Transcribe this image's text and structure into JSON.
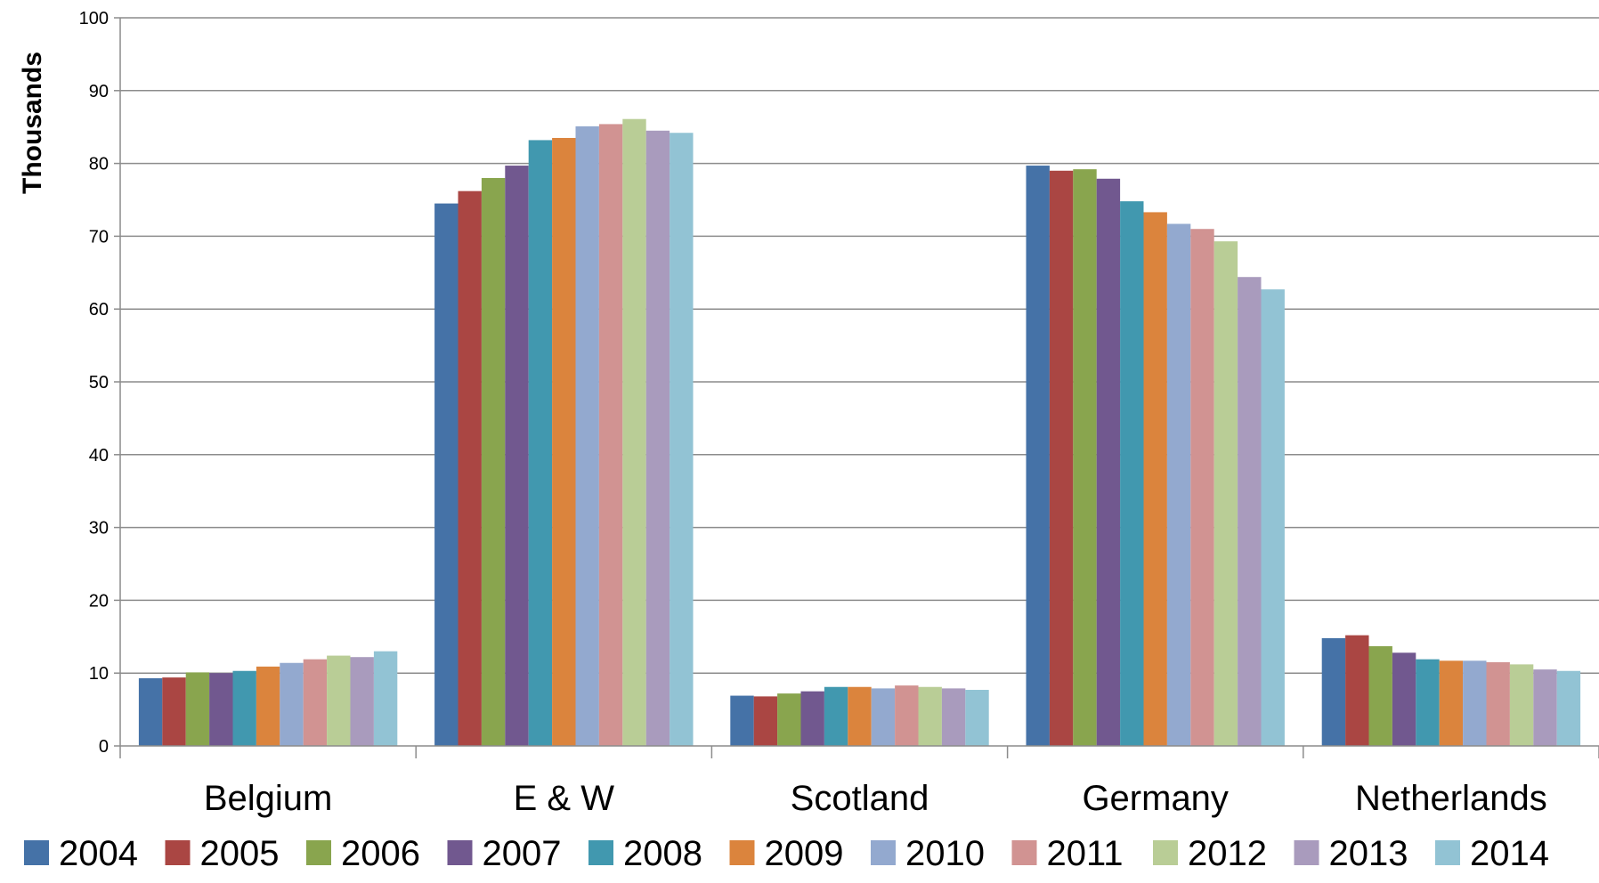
{
  "chart_data": {
    "type": "bar",
    "title": "",
    "xlabel": "",
    "ylabel": "Thousands",
    "ylim": [
      0,
      100
    ],
    "yticks": [
      0,
      10,
      20,
      30,
      40,
      50,
      60,
      70,
      80,
      90,
      100
    ],
    "categories": [
      "Belgium",
      "E & W",
      "Scotland",
      "Germany",
      "Netherlands"
    ],
    "grid": true,
    "legend_position": "bottom",
    "series": [
      {
        "name": "2004",
        "color": "#4572A7",
        "values": [
          9.3,
          74.5,
          6.9,
          79.7,
          14.8
        ]
      },
      {
        "name": "2005",
        "color": "#AA4643",
        "values": [
          9.4,
          76.2,
          6.8,
          79.0,
          15.2
        ]
      },
      {
        "name": "2006",
        "color": "#89A54E",
        "values": [
          10.1,
          78.0,
          7.2,
          79.2,
          13.7
        ]
      },
      {
        "name": "2007",
        "color": "#71588F",
        "values": [
          10.0,
          79.7,
          7.5,
          77.9,
          12.8
        ]
      },
      {
        "name": "2008",
        "color": "#4198AF",
        "values": [
          10.3,
          83.2,
          8.1,
          74.8,
          11.9
        ]
      },
      {
        "name": "2009",
        "color": "#DB843D",
        "values": [
          10.9,
          83.5,
          8.1,
          73.3,
          11.7
        ]
      },
      {
        "name": "2010",
        "color": "#93A9CF",
        "values": [
          11.4,
          85.1,
          7.9,
          71.7,
          11.7
        ]
      },
      {
        "name": "2011",
        "color": "#D19392",
        "values": [
          11.9,
          85.4,
          8.3,
          71.0,
          11.5
        ]
      },
      {
        "name": "2012",
        "color": "#B9CD96",
        "values": [
          12.4,
          86.1,
          8.1,
          69.3,
          11.2
        ]
      },
      {
        "name": "2013",
        "color": "#A99BBD",
        "values": [
          12.2,
          84.5,
          7.9,
          64.4,
          10.5
        ]
      },
      {
        "name": "2014",
        "color": "#92C3D4",
        "values": [
          13.0,
          84.2,
          7.7,
          62.7,
          10.3
        ]
      }
    ]
  }
}
